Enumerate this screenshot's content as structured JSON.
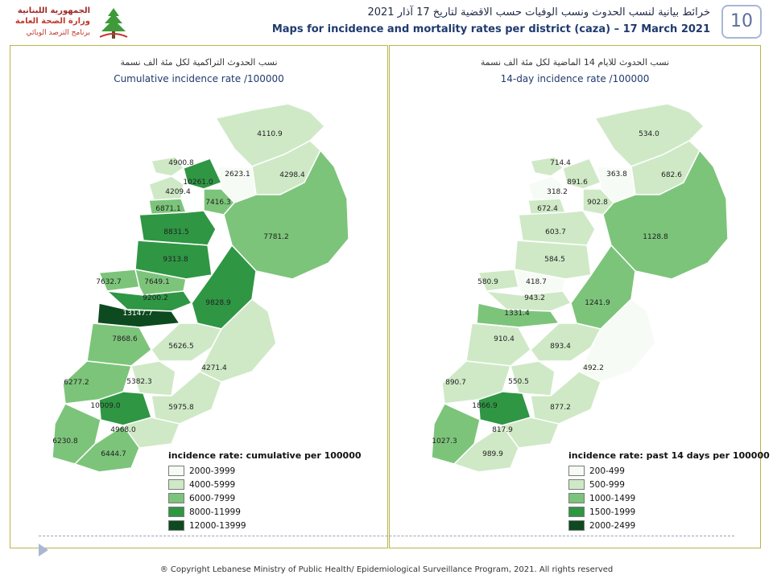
{
  "header": {
    "logo": {
      "line1": "الجمهورية اللبنانية",
      "line2": "وزارة الصحة العامة",
      "line3": "برنامج الترصد الوبائي"
    },
    "title_ar": "خرائط بيانية لنسب الحدوث ونسب الوفيات حسب الاقضية لتاريخ 17 آذار 2021",
    "title_en": "Maps for incidence and mortality rates per district (caza) – 17 March 2021",
    "page_number": "10"
  },
  "colors": {
    "c1": "#f7fbf5",
    "c2": "#cfe9c6",
    "c3": "#7cc47a",
    "c4": "#2f9644",
    "c5": "#0d4a1f",
    "border": "#b9b44a"
  },
  "left_map": {
    "subtitle_ar": "نسب الحدوث التراكمية لكل مئة الف نسمة",
    "subtitle_en": "Cumulative incidence rate /100000",
    "legend_title": "incidence rate: cumulative per 100000",
    "legend": [
      "2000-3999",
      "4000-5999",
      "6000-7999",
      "8000-11999",
      "12000-13999"
    ],
    "districts": [
      {
        "label": "4110.9",
        "class": 2
      },
      {
        "label": "4900.8",
        "class": 2
      },
      {
        "label": "2623.1",
        "class": 1
      },
      {
        "label": "10261.0",
        "class": 4
      },
      {
        "label": "4298.4",
        "class": 2
      },
      {
        "label": "4209.4",
        "class": 2
      },
      {
        "label": "7416.3",
        "class": 3
      },
      {
        "label": "6871.1",
        "class": 3
      },
      {
        "label": "8831.5",
        "class": 4
      },
      {
        "label": "7781.2",
        "class": 3
      },
      {
        "label": "9313.8",
        "class": 4
      },
      {
        "label": "7632.7",
        "class": 3
      },
      {
        "label": "7649.1",
        "class": 3
      },
      {
        "label": "9200.2",
        "class": 4
      },
      {
        "label": "9828.9",
        "class": 4
      },
      {
        "label": "13147.7",
        "class": 5
      },
      {
        "label": "7868.6",
        "class": 3
      },
      {
        "label": "5626.5",
        "class": 2
      },
      {
        "label": "4271.4",
        "class": 2
      },
      {
        "label": "5382.3",
        "class": 2
      },
      {
        "label": "6277.2",
        "class": 3
      },
      {
        "label": "10009.0",
        "class": 4
      },
      {
        "label": "5975.8",
        "class": 2
      },
      {
        "label": "4968.0",
        "class": 2
      },
      {
        "label": "6230.8",
        "class": 3
      },
      {
        "label": "6444.7",
        "class": 3
      }
    ]
  },
  "right_map": {
    "subtitle_ar": "نسب الحدوث للايام 14 الماضية لكل مئة الف نسمة",
    "subtitle_en": "14-day incidence rate /100000",
    "legend_title": "incidence rate: past 14 days per 100000",
    "legend": [
      "200-499",
      "500-999",
      "1000-1499",
      "1500-1999",
      "2000-2499"
    ],
    "districts": [
      {
        "label": "534.0",
        "class": 2
      },
      {
        "label": "714.4",
        "class": 2
      },
      {
        "label": "363.8",
        "class": 1
      },
      {
        "label": "891.6",
        "class": 2
      },
      {
        "label": "682.6",
        "class": 2
      },
      {
        "label": "318.2",
        "class": 1
      },
      {
        "label": "902.8",
        "class": 2
      },
      {
        "label": "672.4",
        "class": 2
      },
      {
        "label": "603.7",
        "class": 2
      },
      {
        "label": "1128.8",
        "class": 3
      },
      {
        "label": "584.5",
        "class": 2
      },
      {
        "label": "580.9",
        "class": 2
      },
      {
        "label": "418.7",
        "class": 1
      },
      {
        "label": "943.2",
        "class": 2
      },
      {
        "label": "1241.9",
        "class": 3
      },
      {
        "label": "1331.4",
        "class": 3
      },
      {
        "label": "910.4",
        "class": 2
      },
      {
        "label": "893.4",
        "class": 2
      },
      {
        "label": "492.2",
        "class": 1
      },
      {
        "label": "550.5",
        "class": 2
      },
      {
        "label": "890.7",
        "class": 2
      },
      {
        "label": "1866.9",
        "class": 4
      },
      {
        "label": "877.2",
        "class": 2
      },
      {
        "label": "817.9",
        "class": 2
      },
      {
        "label": "1027.3",
        "class": 3
      },
      {
        "label": "989.9",
        "class": 2
      }
    ]
  },
  "footer": "® Copyright Lebanese Ministry of Public Health/ Epidemiological Surveillance Program, 2021. All rights reserved"
}
